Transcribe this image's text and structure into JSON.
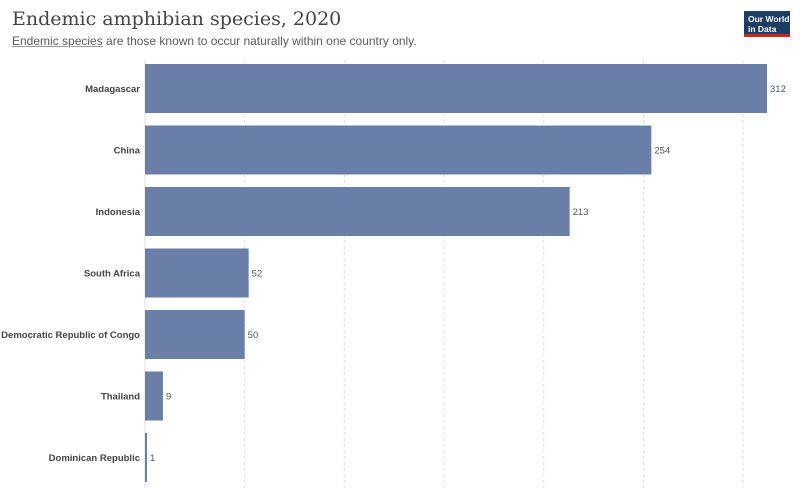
{
  "header": {
    "title": "Endemic amphibian species, 2020",
    "subtitle_link": "Endemic species",
    "subtitle_rest": " are those known to occur naturally within one country only.",
    "logo_line1": "Our World",
    "logo_line2": "in Data"
  },
  "colors": {
    "bar": "#6a7fa8",
    "grid": "#dddddd",
    "logo_bg": "#1d3d63",
    "logo_accent": "#ce261e"
  },
  "chart_data": {
    "type": "bar",
    "orientation": "horizontal",
    "title": "Endemic amphibian species, 2020",
    "subtitle": "Endemic species are those known to occur naturally within one country only.",
    "categories": [
      "Madagascar",
      "China",
      "Indonesia",
      "South Africa",
      "Democratic Republic of Congo",
      "Thailand",
      "Dominican Republic"
    ],
    "values": [
      312,
      254,
      213,
      52,
      50,
      9,
      1
    ],
    "xlim": [
      0,
      312
    ],
    "grid_step": 50,
    "grid": true,
    "legend": false
  }
}
